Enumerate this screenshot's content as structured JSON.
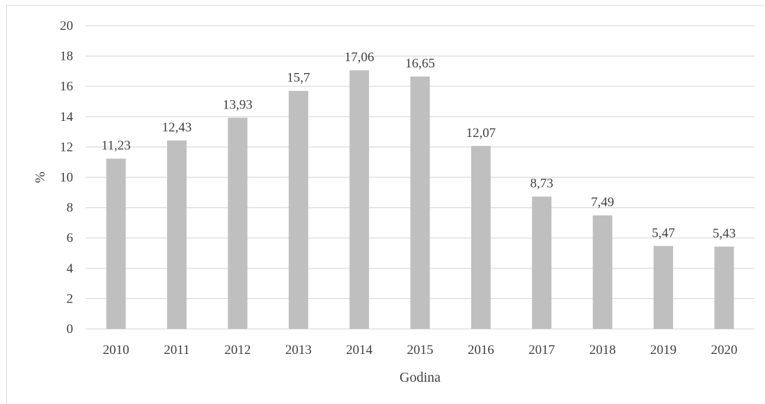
{
  "chart_data": {
    "type": "bar",
    "categories": [
      "2010",
      "2011",
      "2012",
      "2013",
      "2014",
      "2015",
      "2016",
      "2017",
      "2018",
      "2019",
      "2020"
    ],
    "values": [
      11.23,
      12.43,
      13.93,
      15.7,
      17.06,
      16.65,
      12.07,
      8.73,
      7.49,
      5.47,
      5.43
    ],
    "data_labels": [
      "11,23",
      "12,43",
      "13,93",
      "15,7",
      "17,06",
      "16,65",
      "12,07",
      "8,73",
      "7,49",
      "5,47",
      "5,43"
    ],
    "title": "",
    "xlabel": "Godina",
    "ylabel": "%",
    "ylim": [
      0,
      20
    ],
    "yticks": [
      0,
      2,
      4,
      6,
      8,
      10,
      12,
      14,
      16,
      18,
      20
    ],
    "grid": true,
    "legend": "none",
    "colors": {
      "bar": "#bfbfbf",
      "grid": "#d9d9d9",
      "text": "#404040",
      "frame": "#d9d9d9"
    }
  }
}
